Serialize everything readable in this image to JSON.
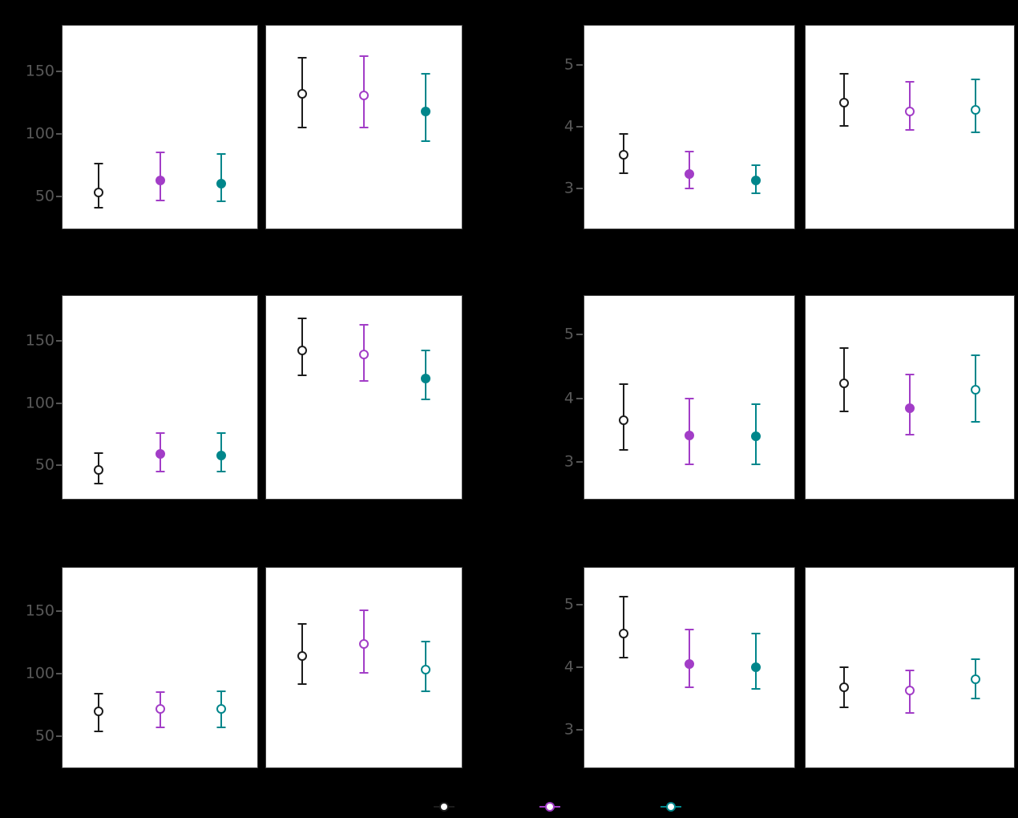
{
  "figure": {
    "background": "#000000",
    "panel_background": "#ffffff",
    "panel_border_color": "#3f3f3f",
    "tick_text_color": "#585858",
    "note": "faceted pointrange figure; facet strip text, axis titles, x tick labels, main title and legend labels are rendered black-on-black and are not visible"
  },
  "series": [
    {
      "name": "series-1",
      "color": "#1c1c1c"
    },
    {
      "name": "series-2",
      "color": "#a23dc7"
    },
    {
      "name": "series-3",
      "color": "#00868b"
    }
  ],
  "legend": {
    "position": "bottom-center",
    "labels_visible": false,
    "entries": [
      {
        "series": "series-1",
        "glyph": "pointrange-open-circle",
        "color": "#1c1c1c"
      },
      {
        "series": "series-2",
        "glyph": "pointrange-open-circle",
        "color": "#a23dc7"
      },
      {
        "series": "series-3",
        "glyph": "pointrange-open-circle",
        "color": "#00868b"
      }
    ]
  },
  "chart_data": [
    {
      "id": "top-left",
      "type": "pointrange",
      "row": 0,
      "group": "left",
      "yticks": [
        50,
        100,
        150
      ],
      "ylim": [
        23.7,
        187.2
      ],
      "panels": [
        {
          "points": [
            {
              "series": 0,
              "y": 53,
              "lo": 41,
              "hi": 76,
              "fill": "open"
            },
            {
              "series": 1,
              "y": 63,
              "lo": 47,
              "hi": 85,
              "fill": "solid"
            },
            {
              "series": 2,
              "y": 60,
              "lo": 46,
              "hi": 84,
              "fill": "solid"
            }
          ]
        },
        {
          "points": [
            {
              "series": 0,
              "y": 132,
              "lo": 105,
              "hi": 161,
              "fill": "open"
            },
            {
              "series": 1,
              "y": 131,
              "lo": 105,
              "hi": 162,
              "fill": "open"
            },
            {
              "series": 2,
              "y": 118,
              "lo": 94,
              "hi": 148,
              "fill": "solid"
            }
          ]
        }
      ]
    },
    {
      "id": "top-right",
      "type": "pointrange",
      "row": 0,
      "group": "right",
      "yticks": [
        3,
        4,
        5
      ],
      "ylim": [
        2.34,
        5.65
      ],
      "panels": [
        {
          "points": [
            {
              "series": 0,
              "y": 3.55,
              "lo": 3.25,
              "hi": 3.89,
              "fill": "open"
            },
            {
              "series": 1,
              "y": 3.24,
              "lo": 3.0,
              "hi": 3.6,
              "fill": "solid"
            },
            {
              "series": 2,
              "y": 3.13,
              "lo": 2.92,
              "hi": 3.38,
              "fill": "solid"
            }
          ]
        },
        {
          "points": [
            {
              "series": 0,
              "y": 4.39,
              "lo": 4.01,
              "hi": 4.86,
              "fill": "open"
            },
            {
              "series": 1,
              "y": 4.25,
              "lo": 3.95,
              "hi": 4.73,
              "fill": "open"
            },
            {
              "series": 2,
              "y": 4.28,
              "lo": 3.91,
              "hi": 4.77,
              "fill": "open"
            }
          ]
        }
      ]
    },
    {
      "id": "middle-left",
      "type": "pointrange",
      "row": 1,
      "group": "left",
      "yticks": [
        50,
        100,
        150
      ],
      "ylim": [
        22.3,
        186.8
      ],
      "panels": [
        {
          "points": [
            {
              "series": 0,
              "y": 46,
              "lo": 35,
              "hi": 60,
              "fill": "open"
            },
            {
              "series": 1,
              "y": 59,
              "lo": 45,
              "hi": 76,
              "fill": "solid"
            },
            {
              "series": 2,
              "y": 58,
              "lo": 45,
              "hi": 76,
              "fill": "solid"
            }
          ]
        },
        {
          "points": [
            {
              "series": 0,
              "y": 142,
              "lo": 122,
              "hi": 168,
              "fill": "open"
            },
            {
              "series": 1,
              "y": 139,
              "lo": 118,
              "hi": 163,
              "fill": "open"
            },
            {
              "series": 2,
              "y": 120,
              "lo": 103,
              "hi": 142,
              "fill": "solid"
            }
          ]
        }
      ]
    },
    {
      "id": "middle-right",
      "type": "pointrange",
      "row": 1,
      "group": "right",
      "yticks": [
        3,
        4,
        5
      ],
      "ylim": [
        2.41,
        5.62
      ],
      "panels": [
        {
          "points": [
            {
              "series": 0,
              "y": 3.66,
              "lo": 3.19,
              "hi": 4.22,
              "fill": "open"
            },
            {
              "series": 1,
              "y": 3.42,
              "lo": 2.97,
              "hi": 4.0,
              "fill": "solid"
            },
            {
              "series": 2,
              "y": 3.4,
              "lo": 2.97,
              "hi": 3.91,
              "fill": "solid"
            }
          ]
        },
        {
          "points": [
            {
              "series": 0,
              "y": 4.24,
              "lo": 3.79,
              "hi": 4.79,
              "fill": "open"
            },
            {
              "series": 1,
              "y": 3.84,
              "lo": 3.43,
              "hi": 4.38,
              "fill": "solid"
            },
            {
              "series": 2,
              "y": 4.14,
              "lo": 3.63,
              "hi": 4.68,
              "fill": "open"
            }
          ]
        }
      ]
    },
    {
      "id": "bottom-left",
      "type": "pointrange",
      "row": 2,
      "group": "left",
      "yticks": [
        50,
        100,
        150
      ],
      "ylim": [
        24.4,
        185.3
      ],
      "panels": [
        {
          "points": [
            {
              "series": 0,
              "y": 70,
              "lo": 54,
              "hi": 84,
              "fill": "open"
            },
            {
              "series": 1,
              "y": 72,
              "lo": 57,
              "hi": 85,
              "fill": "open"
            },
            {
              "series": 2,
              "y": 72,
              "lo": 57,
              "hi": 86,
              "fill": "open"
            }
          ]
        },
        {
          "points": [
            {
              "series": 0,
              "y": 114,
              "lo": 92,
              "hi": 140,
              "fill": "open"
            },
            {
              "series": 1,
              "y": 124,
              "lo": 101,
              "hi": 151,
              "fill": "open"
            },
            {
              "series": 2,
              "y": 103,
              "lo": 86,
              "hi": 126,
              "fill": "open"
            }
          ]
        }
      ]
    },
    {
      "id": "bottom-right",
      "type": "pointrange",
      "row": 2,
      "group": "right",
      "yticks": [
        3,
        4,
        5
      ],
      "ylim": [
        2.38,
        5.6
      ],
      "panels": [
        {
          "points": [
            {
              "series": 0,
              "y": 4.54,
              "lo": 4.15,
              "hi": 5.13,
              "fill": "open"
            },
            {
              "series": 1,
              "y": 4.05,
              "lo": 3.68,
              "hi": 4.6,
              "fill": "solid"
            },
            {
              "series": 2,
              "y": 4.0,
              "lo": 3.65,
              "hi": 4.53,
              "fill": "solid"
            }
          ]
        },
        {
          "points": [
            {
              "series": 0,
              "y": 3.67,
              "lo": 3.35,
              "hi": 4.0,
              "fill": "open"
            },
            {
              "series": 1,
              "y": 3.62,
              "lo": 3.26,
              "hi": 3.94,
              "fill": "open"
            },
            {
              "series": 2,
              "y": 3.81,
              "lo": 3.49,
              "hi": 4.12,
              "fill": "open"
            }
          ]
        }
      ]
    }
  ]
}
